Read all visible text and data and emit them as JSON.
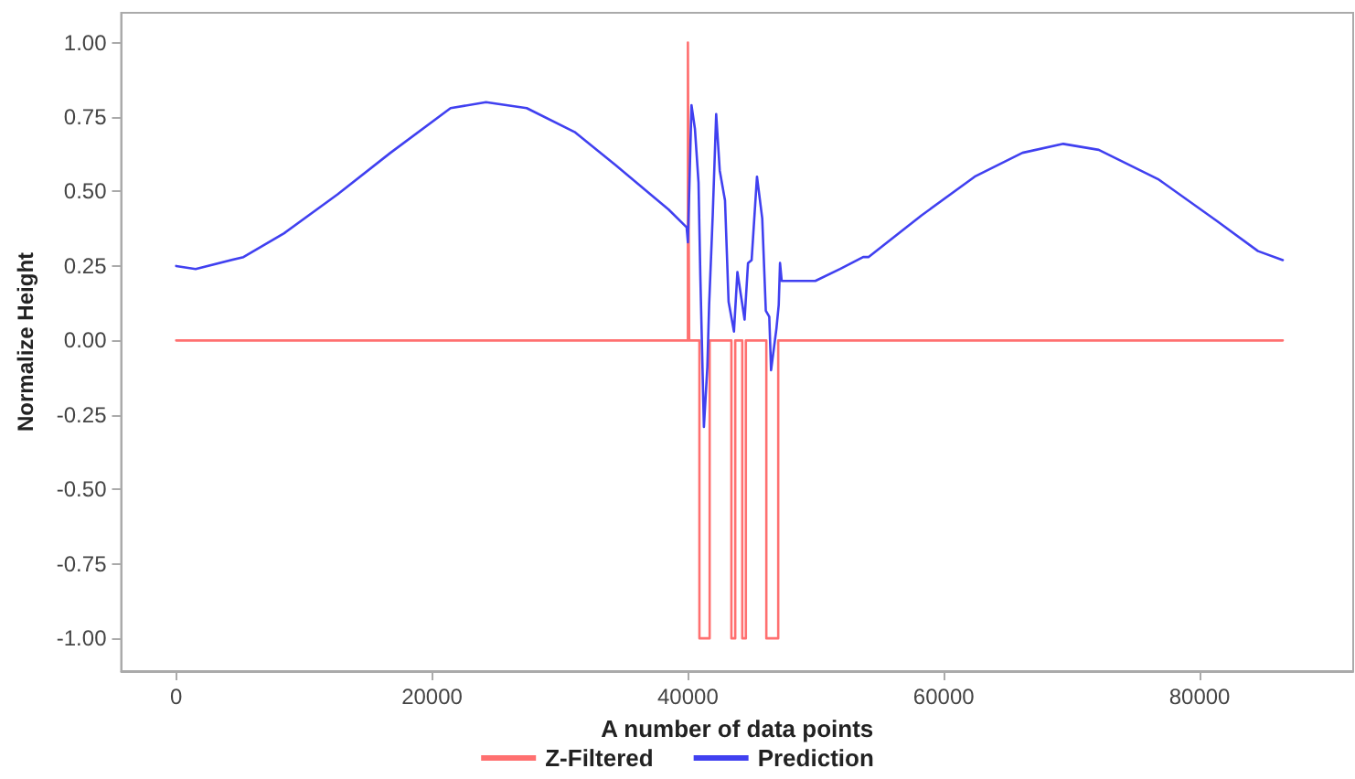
{
  "chart_data": {
    "type": "line",
    "xlabel": "A number of data points",
    "ylabel": "Normalize Height",
    "xlim": [
      -4300,
      92000
    ],
    "xticks": [
      0,
      20000,
      40000,
      60000,
      80000
    ],
    "ylim": [
      -1.11,
      1.1
    ],
    "yticks": [
      {
        "value": -1,
        "label": "-1.00"
      },
      {
        "value": -0.75,
        "label": "-0.75"
      },
      {
        "value": -0.5,
        "label": "-0.50"
      },
      {
        "value": -0.25,
        "label": "-0.25"
      },
      {
        "value": 0,
        "label": "0.00"
      },
      {
        "value": 0.25,
        "label": "0.25"
      },
      {
        "value": 0.5,
        "label": "0.50"
      },
      {
        "value": 0.75,
        "label": "0.75"
      },
      {
        "value": 1,
        "label": "1.00"
      }
    ],
    "grid": false,
    "legend": "bottom",
    "marker": "none",
    "line_style": "solid",
    "series": [
      {
        "name": "Z-Filtered",
        "color": "#ff7070",
        "x": [
          0,
          40000,
          40000,
          40100,
          40900,
          40900,
          41700,
          41700,
          43400,
          43400,
          43700,
          43700,
          44250,
          44250,
          44530,
          44530,
          46130,
          46130,
          47060,
          47060,
          86500
        ],
        "values": [
          0,
          0,
          1,
          0,
          0,
          -1,
          -1,
          0,
          0,
          -1,
          -1,
          0,
          0,
          -1,
          -1,
          0,
          0,
          -1,
          -1,
          0,
          0
        ]
      },
      {
        "name": "Prediction",
        "color": "#4040f0",
        "x": [
          0,
          1520,
          5260,
          8440,
          12600,
          16750,
          21450,
          24220,
          27400,
          31140,
          34320,
          37090,
          38480,
          39900,
          40000,
          40280,
          40550,
          40830,
          40970,
          41250,
          41520,
          41660,
          41940,
          42210,
          42490,
          42900,
          43180,
          43600,
          43870,
          44150,
          44430,
          44700,
          44980,
          45400,
          45810,
          46090,
          46360,
          46500,
          46920,
          47100,
          47200,
          47330,
          49130,
          49960,
          51900,
          53700,
          54110,
          58270,
          62420,
          66150,
          69340,
          72110,
          76810,
          81380,
          84560,
          86500
        ],
        "values": [
          0.25,
          0.24,
          0.28,
          0.36,
          0.49,
          0.63,
          0.78,
          0.8,
          0.78,
          0.7,
          0.59,
          0.49,
          0.44,
          0.38,
          0.33,
          0.79,
          0.71,
          0.53,
          0.22,
          -0.29,
          -0.09,
          0.12,
          0.42,
          0.76,
          0.57,
          0.47,
          0.13,
          0.03,
          0.23,
          0.15,
          0.07,
          0.26,
          0.27,
          0.55,
          0.41,
          0.1,
          0.08,
          -0.1,
          0.04,
          0.12,
          0.26,
          0.2,
          0.2,
          0.2,
          0.24,
          0.28,
          0.28,
          0.42,
          0.55,
          0.63,
          0.66,
          0.64,
          0.54,
          0.4,
          0.3,
          0.27
        ]
      }
    ]
  }
}
